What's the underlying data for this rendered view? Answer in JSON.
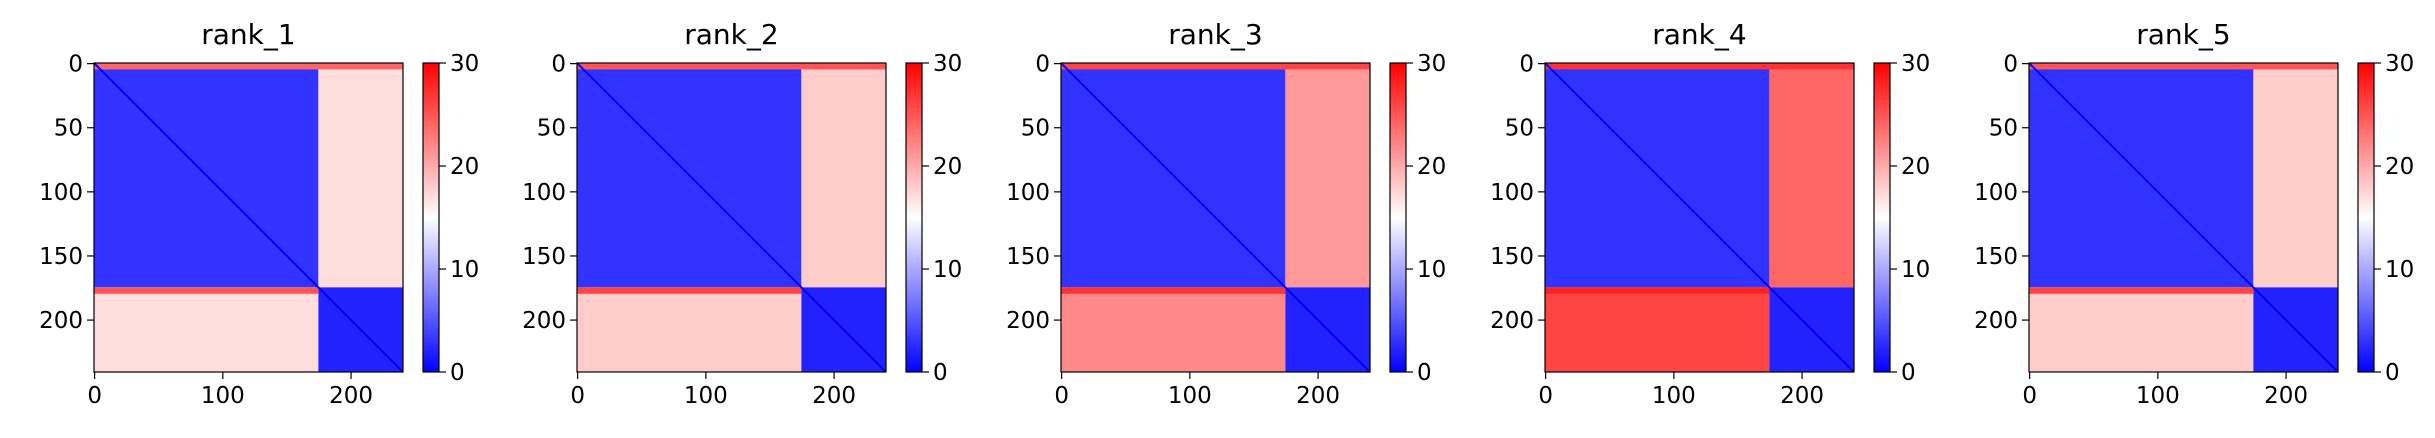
{
  "chart_data": [
    {
      "type": "heatmap",
      "title": "rank_1",
      "matrix_size": 241,
      "colormap": "bwr",
      "clim": [
        0,
        30
      ],
      "regions": [
        {
          "rows": [
            0,
            175
          ],
          "cols": [
            0,
            175
          ],
          "value": 3
        },
        {
          "rows": [
            0,
            175
          ],
          "cols": [
            175,
            241
          ],
          "value": 17
        },
        {
          "rows": [
            175,
            241
          ],
          "cols": [
            0,
            175
          ],
          "value": 17
        },
        {
          "rows": [
            175,
            241
          ],
          "cols": [
            175,
            241
          ],
          "value": 2
        },
        {
          "rows": [
            0,
            5
          ],
          "cols": [
            0,
            241
          ],
          "value": 24
        },
        {
          "rows": [
            175,
            180
          ],
          "cols": [
            0,
            175
          ],
          "value": 25
        }
      ],
      "xticks": [
        0,
        100,
        200
      ],
      "yticks": [
        0,
        50,
        100,
        150,
        200
      ],
      "colorbar_ticks": [
        0,
        10,
        20,
        30
      ]
    },
    {
      "type": "heatmap",
      "title": "rank_2",
      "matrix_size": 241,
      "colormap": "bwr",
      "clim": [
        0,
        30
      ],
      "regions": [
        {
          "rows": [
            0,
            175
          ],
          "cols": [
            0,
            175
          ],
          "value": 3
        },
        {
          "rows": [
            0,
            175
          ],
          "cols": [
            175,
            241
          ],
          "value": 18
        },
        {
          "rows": [
            175,
            241
          ],
          "cols": [
            0,
            175
          ],
          "value": 18
        },
        {
          "rows": [
            175,
            241
          ],
          "cols": [
            175,
            241
          ],
          "value": 2
        },
        {
          "rows": [
            0,
            5
          ],
          "cols": [
            0,
            241
          ],
          "value": 25
        },
        {
          "rows": [
            175,
            180
          ],
          "cols": [
            0,
            175
          ],
          "value": 26
        }
      ],
      "xticks": [
        0,
        100,
        200
      ],
      "yticks": [
        0,
        50,
        100,
        150,
        200
      ],
      "colorbar_ticks": [
        0,
        10,
        20,
        30
      ]
    },
    {
      "type": "heatmap",
      "title": "rank_3",
      "matrix_size": 241,
      "colormap": "bwr",
      "clim": [
        0,
        30
      ],
      "regions": [
        {
          "rows": [
            0,
            175
          ],
          "cols": [
            0,
            175
          ],
          "value": 3
        },
        {
          "rows": [
            0,
            175
          ],
          "cols": [
            175,
            241
          ],
          "value": 21
        },
        {
          "rows": [
            175,
            241
          ],
          "cols": [
            0,
            175
          ],
          "value": 22
        },
        {
          "rows": [
            175,
            241
          ],
          "cols": [
            175,
            241
          ],
          "value": 2
        },
        {
          "rows": [
            0,
            5
          ],
          "cols": [
            0,
            241
          ],
          "value": 26
        },
        {
          "rows": [
            175,
            180
          ],
          "cols": [
            0,
            175
          ],
          "value": 27
        }
      ],
      "xticks": [
        0,
        100,
        200
      ],
      "yticks": [
        0,
        50,
        100,
        150,
        200
      ],
      "colorbar_ticks": [
        0,
        10,
        20,
        30
      ]
    },
    {
      "type": "heatmap",
      "title": "rank_4",
      "matrix_size": 241,
      "colormap": "bwr",
      "clim": [
        0,
        30
      ],
      "regions": [
        {
          "rows": [
            0,
            175
          ],
          "cols": [
            0,
            175
          ],
          "value": 3
        },
        {
          "rows": [
            0,
            175
          ],
          "cols": [
            175,
            241
          ],
          "value": 24
        },
        {
          "rows": [
            175,
            241
          ],
          "cols": [
            0,
            175
          ],
          "value": 26
        },
        {
          "rows": [
            175,
            241
          ],
          "cols": [
            175,
            241
          ],
          "value": 2
        },
        {
          "rows": [
            0,
            5
          ],
          "cols": [
            0,
            241
          ],
          "value": 27
        },
        {
          "rows": [
            175,
            180
          ],
          "cols": [
            0,
            175
          ],
          "value": 28
        }
      ],
      "xticks": [
        0,
        100,
        200
      ],
      "yticks": [
        0,
        50,
        100,
        150,
        200
      ],
      "colorbar_ticks": [
        0,
        10,
        20,
        30
      ]
    },
    {
      "type": "heatmap",
      "title": "rank_5",
      "matrix_size": 241,
      "colormap": "bwr",
      "clim": [
        0,
        30
      ],
      "regions": [
        {
          "rows": [
            0,
            175
          ],
          "cols": [
            0,
            175
          ],
          "value": 3
        },
        {
          "rows": [
            0,
            175
          ],
          "cols": [
            175,
            241
          ],
          "value": 18
        },
        {
          "rows": [
            175,
            241
          ],
          "cols": [
            0,
            175
          ],
          "value": 18
        },
        {
          "rows": [
            175,
            241
          ],
          "cols": [
            175,
            241
          ],
          "value": 2
        },
        {
          "rows": [
            0,
            5
          ],
          "cols": [
            0,
            241
          ],
          "value": 25
        },
        {
          "rows": [
            175,
            180
          ],
          "cols": [
            0,
            175
          ],
          "value": 26
        }
      ],
      "xticks": [
        0,
        100,
        200
      ],
      "yticks": [
        0,
        50,
        100,
        150,
        200
      ],
      "colorbar_ticks": [
        0,
        10,
        20,
        30
      ]
    }
  ]
}
